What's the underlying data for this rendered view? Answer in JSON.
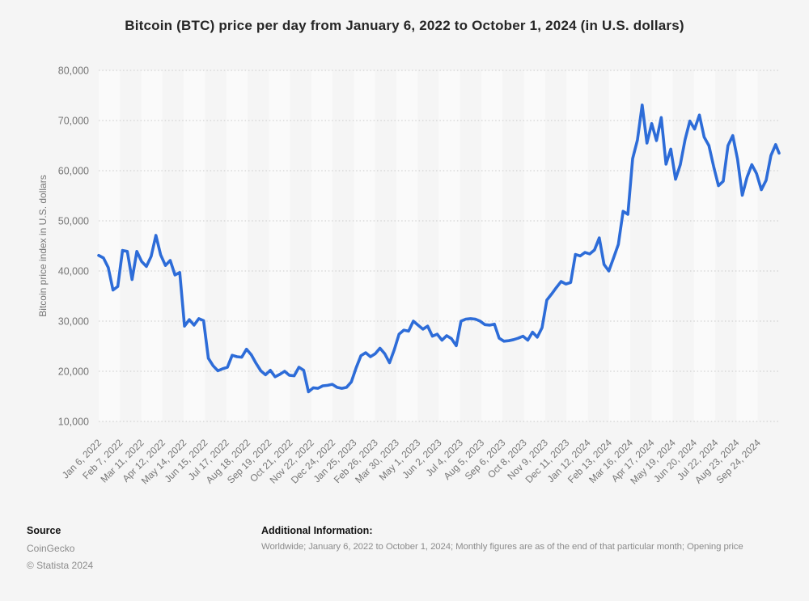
{
  "page": {
    "title": "Bitcoin (BTC) price per day from January 6, 2022 to October 1, 2024 (in U.S. dollars)"
  },
  "footer": {
    "source_label": "Source",
    "source_name": "CoinGecko",
    "copyright": "© Statista 2024",
    "additional_info_label": "Additional Information:",
    "additional_info_text": "Worldwide; January 6, 2022 to October 1, 2024; Monthly figures are as of the end of that particular month; Opening price"
  },
  "chart_data": {
    "type": "line",
    "title": "Bitcoin (BTC) price per day from January 6, 2022 to October 1, 2024 (in U.S. dollars)",
    "xlabel": "",
    "ylabel": "Bitcoin price index in U.S. dollars",
    "ylim": [
      10000,
      80000
    ],
    "y_tick_step": 10000,
    "y_ticks": [
      "10,000",
      "20,000",
      "30,000",
      "40,000",
      "50,000",
      "60,000",
      "70,000",
      "80,000"
    ],
    "grid": "horizontal-dotted",
    "legend": "none",
    "line_color": "#2d6cd8",
    "band_color_light": "#fafafa",
    "band_color_dark": "#f5f5f5",
    "text_color": "#767676",
    "categories": [
      "Jan 6, 2022",
      "Feb 7, 2022",
      "Mar 11, 2022",
      "Apr 12, 2022",
      "May 14, 2022",
      "Jun 15, 2022",
      "Jul 17, 2022",
      "Aug 18, 2022",
      "Sep 19, 2022",
      "Oct 21, 2022",
      "Nov 22, 2022",
      "Dec 24, 2022",
      "Jan 25, 2023",
      "Feb 26, 2023",
      "Mar 30, 2023",
      "May 1, 2023",
      "Jun 2, 2023",
      "Jul 4, 2023",
      "Aug 5, 2023",
      "Sep 6, 2023",
      "Oct 8, 2023",
      "Nov 9, 2023",
      "Dec 11, 2023",
      "Jan 12, 2024",
      "Feb 13, 2024",
      "Mar 16, 2024",
      "Apr 17, 2024",
      "May 19, 2024",
      "Jun 20, 2024",
      "Jul 22, 2024",
      "Aug 23, 2024",
      "Sep 24, 2024"
    ],
    "tick_interval_days": 32,
    "x_range_days": [
      0,
      999
    ],
    "series": [
      {
        "name": "Bitcoin price in U.S. dollars",
        "days": [
          0,
          7,
          14,
          21,
          28,
          35,
          42,
          49,
          56,
          63,
          70,
          77,
          84,
          91,
          98,
          105,
          112,
          119,
          126,
          133,
          140,
          147,
          154,
          161,
          168,
          175,
          182,
          189,
          196,
          203,
          210,
          217,
          224,
          231,
          238,
          245,
          252,
          259,
          266,
          273,
          280,
          287,
          294,
          301,
          308,
          315,
          322,
          329,
          336,
          343,
          350,
          357,
          364,
          371,
          378,
          385,
          392,
          399,
          406,
          413,
          420,
          427,
          434,
          441,
          448,
          455,
          462,
          469,
          476,
          483,
          490,
          497,
          504,
          511,
          518,
          525,
          532,
          539,
          546,
          553,
          560,
          567,
          574,
          581,
          588,
          595,
          602,
          609,
          616,
          623,
          630,
          637,
          644,
          651,
          658,
          665,
          672,
          679,
          686,
          693,
          700,
          707,
          714,
          721,
          728,
          735,
          742,
          749,
          756,
          763,
          770,
          777,
          784,
          791,
          798,
          805,
          812,
          819,
          826,
          833,
          840,
          847,
          854,
          861,
          868,
          875,
          882,
          889,
          896,
          903,
          910,
          917,
          924,
          931,
          938,
          945,
          952,
          959,
          966,
          973,
          980,
          987,
          994,
          999
        ],
        "values": [
          43100,
          42600,
          40700,
          36200,
          36900,
          44100,
          43900,
          38300,
          43900,
          41900,
          40900,
          42900,
          47100,
          43200,
          41100,
          42100,
          39200,
          39700,
          29000,
          30300,
          29200,
          30500,
          30100,
          22600,
          21100,
          20100,
          20500,
          20800,
          23200,
          22900,
          22800,
          24400,
          23300,
          21600,
          20100,
          19300,
          20200,
          18900,
          19400,
          20000,
          19200,
          19100,
          20800,
          20200,
          15900,
          16700,
          16600,
          17100,
          17200,
          17400,
          16800,
          16600,
          16800,
          17900,
          20700,
          23100,
          23700,
          22900,
          23500,
          24600,
          23500,
          21700,
          24300,
          27400,
          28200,
          28000,
          30000,
          29200,
          28400,
          29000,
          27000,
          27400,
          26200,
          27100,
          26500,
          25100,
          30000,
          30400,
          30500,
          30400,
          30000,
          29300,
          29200,
          29400,
          26600,
          26000,
          26100,
          26300,
          26600,
          27000,
          26200,
          27800,
          26800,
          28700,
          34200,
          35400,
          36700,
          37900,
          37400,
          37700,
          43300,
          43000,
          43700,
          43400,
          44200,
          46600,
          41300,
          40000,
          42600,
          45300,
          51900,
          51300,
          62400,
          66100,
          73100,
          65500,
          69400,
          66000,
          70600,
          61300,
          64300,
          58300,
          61200,
          66200,
          69900,
          68300,
          71100,
          66700,
          65000,
          60800,
          57000,
          57900,
          65000,
          67000,
          62300,
          55100,
          58700,
          61200,
          59400,
          56200,
          58100,
          63000,
          65200,
          63500
        ]
      }
    ]
  }
}
